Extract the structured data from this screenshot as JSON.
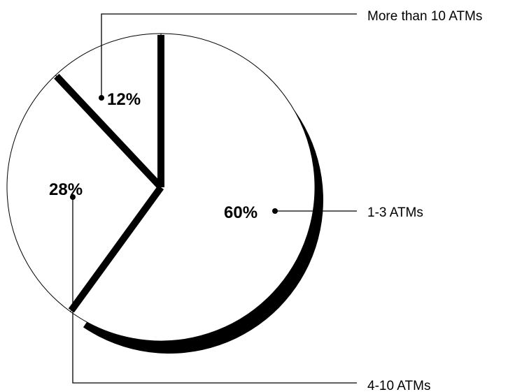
{
  "chart_data": {
    "type": "pie",
    "title": "",
    "slices": [
      {
        "label": "1-3 ATMs",
        "value": 60,
        "value_label": "60%"
      },
      {
        "label": "4-10 ATMs",
        "value": 28,
        "value_label": "28%"
      },
      {
        "label": "More than 10 ATMs",
        "value": 12,
        "value_label": "12%"
      }
    ],
    "colors": {
      "fill": "#ffffff",
      "stroke": "#000000",
      "shadow": "#000000"
    }
  }
}
